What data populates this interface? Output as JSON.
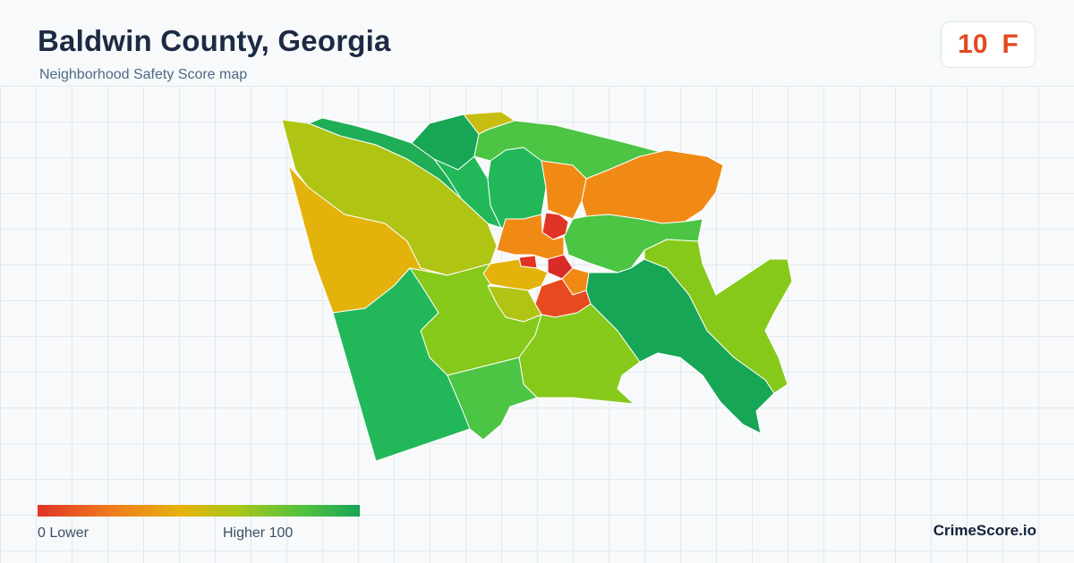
{
  "header": {
    "title": "Baldwin County, Georgia",
    "subtitle": "Neighborhood Safety Score map"
  },
  "score": {
    "value": "10",
    "grade": "F",
    "color": "#e2491f"
  },
  "legend": {
    "min_label": "0  Lower",
    "max_label": "Higher  100",
    "colors": [
      "#e03426",
      "#ef7a1d",
      "#e5b30e",
      "#a9c619",
      "#52c23e",
      "#17a655"
    ]
  },
  "brand": "CrimeScore.io",
  "map": {
    "region_colors": {
      "dark_green": "#17a655",
      "green": "#22b85a",
      "light_green": "#4cc444",
      "yellow_green": "#86c91a",
      "olive": "#b0c414",
      "gold": "#e3b30c",
      "orange": "#f08a14",
      "dark_orange": "#ee6a1e",
      "red": "#e03426"
    }
  }
}
